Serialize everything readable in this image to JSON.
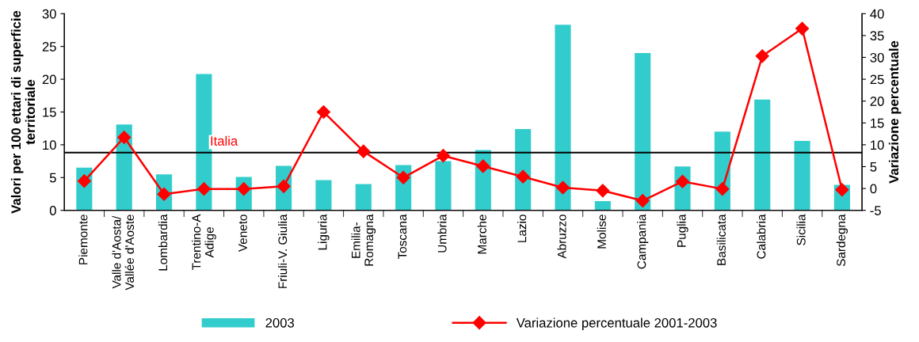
{
  "chart_data": {
    "type": "bar",
    "categories": [
      "Piemonte",
      "Valle d'Aosta/\nVallée d'Aoste",
      "Lombardia",
      "Trentino-A\nAdige",
      "Veneto",
      "Friuli-V. Giulia",
      "Liguria",
      "Emilia-\nRomagna",
      "Toscana",
      "Umbria",
      "Marche",
      "Lazio",
      "Abruzzo",
      "Molise",
      "Campania",
      "Puglia",
      "Basilicata",
      "Calabria",
      "Sicilia",
      "Sardegna"
    ],
    "series": [
      {
        "name": "2003",
        "color": "#33cccc",
        "values": [
          6.5,
          13.1,
          5.5,
          20.8,
          5.1,
          6.8,
          4.6,
          4.0,
          6.9,
          7.5,
          9.2,
          12.4,
          28.3,
          1.4,
          24.0,
          6.7,
          12.0,
          16.9,
          10.6,
          3.9
        ]
      },
      {
        "name": "Variazione percentuale 2001-2003",
        "type": "line",
        "axis": "y2",
        "color": "#ff0000",
        "marker": "diamond",
        "values": [
          1.7,
          11.7,
          -1.3,
          -0.1,
          -0.1,
          0.5,
          17.5,
          8.5,
          2.5,
          7.5,
          5.1,
          2.7,
          0.2,
          -0.5,
          -2.8,
          1.6,
          -0.1,
          30.3,
          36.6,
          -0.3
        ]
      }
    ],
    "ylabel": "Valori per 100 ettari di superficie\nterritoriale",
    "y2label": "Variazione percentuale",
    "ylim": [
      0,
      30
    ],
    "yticks": [
      0,
      5,
      10,
      15,
      20,
      25,
      30
    ],
    "y2lim": [
      -5,
      40
    ],
    "y2ticks": [
      -5,
      0,
      5,
      10,
      15,
      20,
      25,
      30,
      35,
      40
    ],
    "ref_lines": [
      {
        "axis": "y",
        "value": 8.8,
        "label": "Italia",
        "color": "#000000"
      }
    ],
    "grid": false,
    "legend": "bottom"
  }
}
